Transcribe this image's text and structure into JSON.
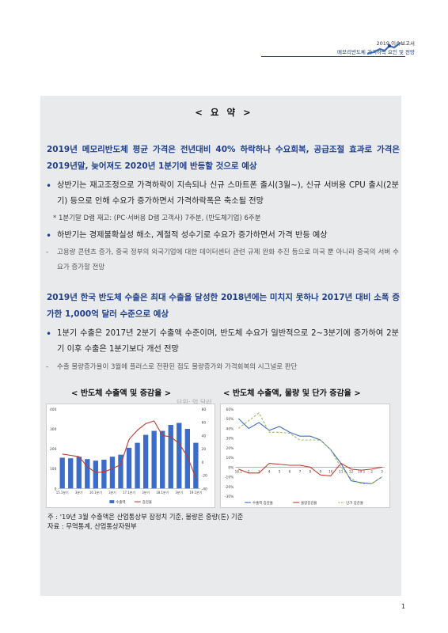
{
  "header": {
    "year_title": "2019 이슈보고서",
    "subtitle": "메모리반도체 가격하락 요인 및 전망"
  },
  "title": "< 요 약 >",
  "section1": {
    "headline": "2019년 메모리반도체 평균 가격은 전년대비 40% 하락하나 수요회복, 공급조절 효과로 가격은 2019년말, 늦어져도 2020년 1분기에 반등할 것으로 예상",
    "bullet1": "상반기는 재고조정으로 가격하락이 지속되나 신규 스마트폰 출시(3월~), 신규 서버용 CPU 출시(2분기) 등으로 인해 수요가 증가하면서 가격하락폭은 축소될 전망",
    "star_note": "* 1분기말 D램 재고: (PC·서버용 D램 고객사) 7주분, (반도체기업) 6주분",
    "bullet2": "하반기는 경제불확실성 해소, 계절적 성수기로 수요가 증가하면서 가격 반등 예상",
    "note": "고용량 콘텐츠 증가, 중국 정부의 외국기업에 대한 데이터센터 관련 규제 완화 추진 등으로 미국 뿐 아니라 중국의 서버 수요가 증가할 전망"
  },
  "section2": {
    "headline": "2019년 한국 반도체 수출은 최대 수출을 달성한 2018년에는 미치지 못하나 2017년 대비 소폭 증가한 1,000억 달러 수준으로 예상",
    "bullet1": "1분기 수출은 2017년 2분기 수출액 수준이며, 반도체 수요가 일반적으로 2~3분기에 증가하여 2분기 이후 수출은 1분기보다 개선 전망",
    "note": "수출 물량증가율이 3월에 플러스로 전환된 점도 물량증가와 가격회복의 시그널로 판단"
  },
  "charts": {
    "left_title": "< 반도체 수출액 및 증감율 >",
    "right_title": "< 반도체 수출액, 물량 및 단가 증감율 >",
    "unit": "단위: 억 달러"
  },
  "chart_data": [
    {
      "type": "bar",
      "categories": [
        "15.1분기",
        "15.2분기",
        "15.3분기",
        "15.4분기",
        "16.1분기",
        "16.2분기",
        "16.3분기",
        "16.4분기",
        "17.1분기",
        "17.2분기",
        "17.3분기",
        "17.4분기",
        "18.1분기",
        "18.2분기",
        "18.3분기",
        "18.4분기",
        "19.1분기"
      ],
      "x_tick_labels": [
        "15.1분기",
        "3분기",
        "16.1분기",
        "3분기",
        "17.1분기",
        "3분기",
        "18.1분기",
        "3분기",
        "19.1분기"
      ],
      "series": [
        {
          "name": "수출액",
          "kind": "bar",
          "axis": "left",
          "values": [
            155,
            152,
            160,
            148,
            140,
            145,
            160,
            170,
            205,
            230,
            270,
            290,
            290,
            320,
            330,
            300,
            230
          ]
        },
        {
          "name": "증감율",
          "kind": "line",
          "axis": "right",
          "values": [
            12,
            10,
            8,
            -7,
            -16,
            -15,
            -10,
            -4,
            34,
            48,
            58,
            62,
            40,
            38,
            28,
            8,
            -24
          ]
        }
      ],
      "ylim_left": [
        0,
        400
      ],
      "yticks_left": [
        0,
        100,
        200,
        300,
        400
      ],
      "ylim_right": [
        -40,
        80
      ],
      "yticks_right": [
        -40,
        -20,
        0,
        20,
        40,
        60,
        80
      ],
      "legend_position": "bottom",
      "colors": {
        "bar": "#3b6cc7",
        "line": "#c0392b"
      }
    },
    {
      "type": "line",
      "x_tick_labels": [
        "18.1",
        "2",
        "3",
        "4",
        "5",
        "6",
        "7",
        "8",
        "9",
        "10",
        "11",
        "12",
        "19.1",
        "2",
        "3"
      ],
      "series": [
        {
          "name": "수출액 증감율",
          "values": [
            50,
            40,
            46,
            38,
            42,
            36,
            32,
            32,
            28,
            18,
            4,
            -14,
            -16,
            -17,
            -10
          ]
        },
        {
          "name": "물량증감율",
          "values": [
            -2,
            -6,
            -6,
            4,
            3,
            2,
            2,
            0,
            -8,
            -9,
            4,
            -2,
            -3,
            -2,
            0
          ]
        },
        {
          "name": "단가 증감율",
          "values": [
            40,
            48,
            56,
            36,
            36,
            35,
            28,
            28,
            28,
            18,
            0,
            -12,
            -17,
            -17,
            -10
          ]
        }
      ],
      "ylim": [
        -30,
        60
      ],
      "yticks": [
        -30,
        -20,
        -10,
        0,
        10,
        20,
        30,
        40,
        50,
        60
      ],
      "legend_position": "bottom",
      "colors": {
        "수출액 증감율": "#3b6cc7",
        "물량증감율": "#c0392b",
        "단가 증감율": "#9bbb59"
      }
    }
  ],
  "footnotes": {
    "note1": "주 : '19년 3월 수출액은 산업통상부 잠정치 기준, 물량은 중량(톤) 기준",
    "note2": "자료 : 무역통계, 산업통상자원부"
  },
  "page_number": "1"
}
